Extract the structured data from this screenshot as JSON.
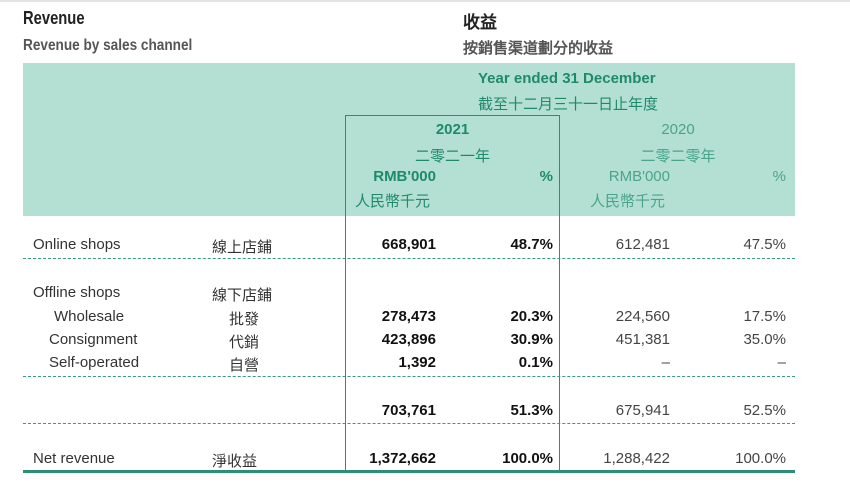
{
  "heading": {
    "title_en": "Revenue",
    "title_zh": "收益",
    "subtitle_en": "Revenue by sales channel",
    "subtitle_zh": "按銷售渠道劃分的收益"
  },
  "table_header": {
    "period_en": "Year ended 31 December",
    "period_zh": "截至十二月三十一日止年度",
    "years": [
      {
        "year": "2021",
        "year_zh": "二零二一年",
        "unit_en": "RMB'000",
        "unit_zh": "人民幣千元",
        "pct": "%"
      },
      {
        "year": "2020",
        "year_zh": "二零二零年",
        "unit_en": "RMB'000",
        "unit_zh": "人民幣千元",
        "pct": "%"
      }
    ]
  },
  "rows": [
    {
      "label_en": "Online shops",
      "label_zh": "線上店鋪",
      "v2021": "668,901",
      "p2021": "48.7%",
      "v2020": "612,481",
      "p2020": "47.5%"
    },
    {
      "label_en": "Offline shops",
      "label_zh": "線下店鋪",
      "v2021": "",
      "p2021": "",
      "v2020": "",
      "p2020": ""
    },
    {
      "label_en": "Wholesale",
      "label_zh": "批發",
      "v2021": "278,473",
      "p2021": "20.3%",
      "v2020": "224,560",
      "p2020": "17.5%"
    },
    {
      "label_en": "Consignment",
      "label_zh": "代銷",
      "v2021": "423,896",
      "p2021": "30.9%",
      "v2020": "451,381",
      "p2020": "35.0%"
    },
    {
      "label_en": "Self-operated",
      "label_zh": "自營",
      "v2021": "1,392",
      "p2021": "0.1%",
      "v2020": "–",
      "p2020": "–"
    },
    {
      "label_en": "",
      "label_zh": "",
      "v2021": "703,761",
      "p2021": "51.3%",
      "v2020": "675,941",
      "p2020": "52.5%"
    },
    {
      "label_en": "Net revenue",
      "label_zh": "淨收益",
      "v2021": "1,372,662",
      "p2021": "100.0%",
      "v2020": "1,288,422",
      "p2020": "100.0%"
    }
  ]
}
